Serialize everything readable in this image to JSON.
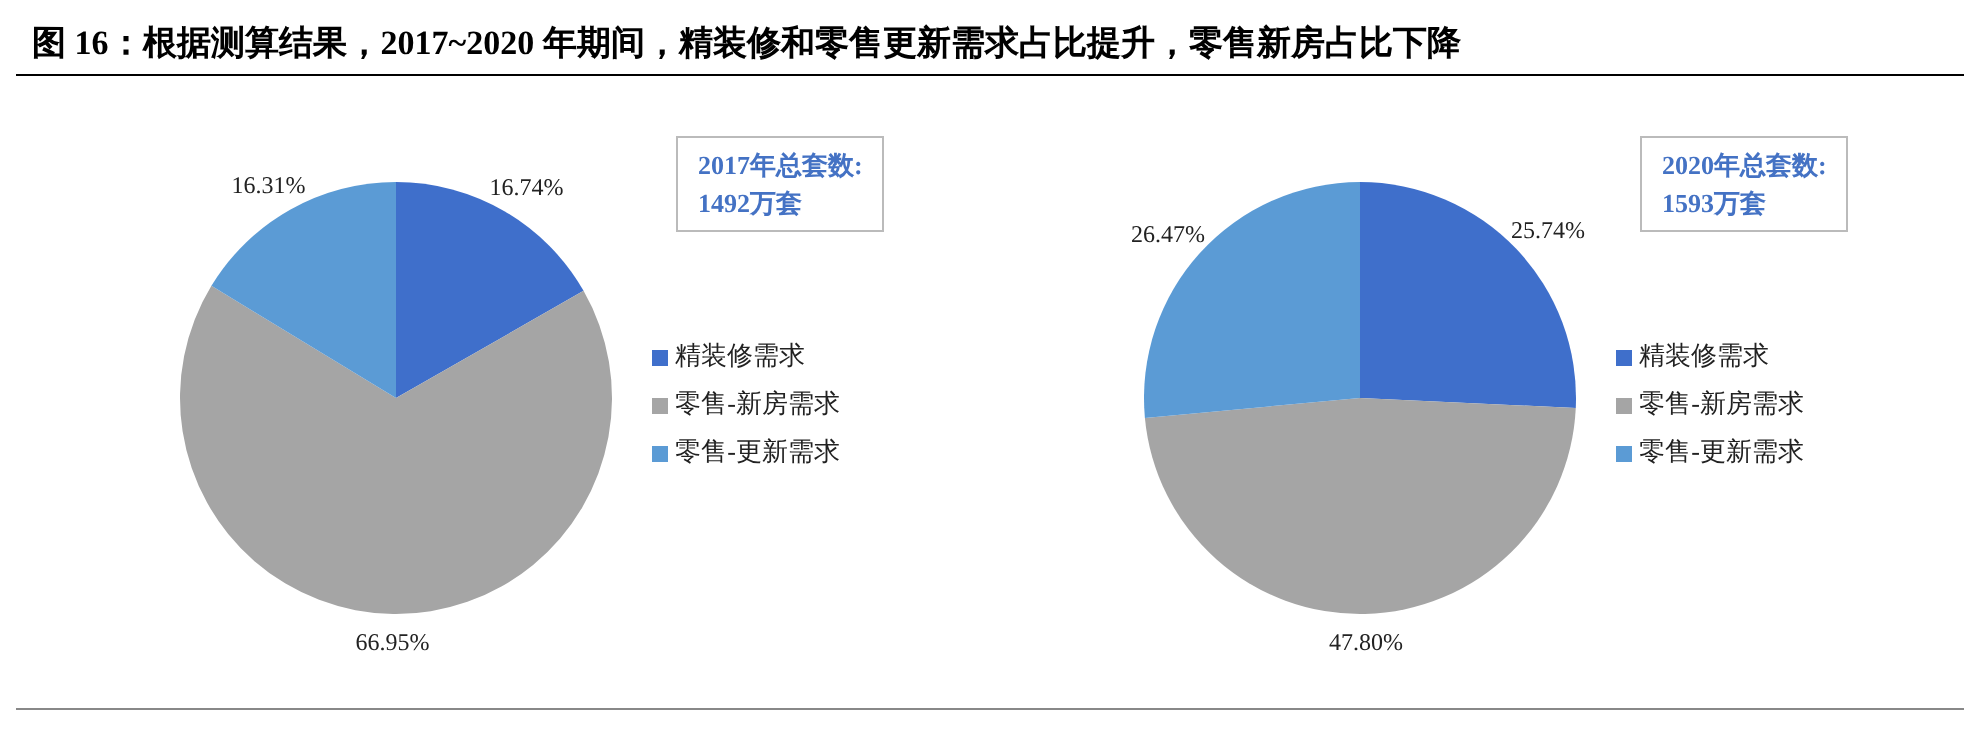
{
  "chart_data": [
    {
      "type": "pie",
      "title": "图 16：根据测算结果，2017~2020 年期间，精装修和零售更新需求占比提升，零售新房占比下降",
      "categories": [
        "精装修需求",
        "零售-新房需求",
        "零售-更新需求"
      ],
      "values": [
        16.74,
        66.95,
        16.31
      ],
      "colors": [
        "#3f6fcb",
        "#a5a5a5",
        "#5b9bd5"
      ],
      "value_labels": [
        "16.74%",
        "66.95%",
        "16.31%"
      ],
      "legend": "right",
      "annotations": [
        "2017年总套数:\n1492万套"
      ]
    },
    {
      "type": "pie",
      "categories": [
        "精装修需求",
        "零售-新房需求",
        "零售-更新需求"
      ],
      "values": [
        25.74,
        47.8,
        26.47
      ],
      "colors": [
        "#3f6fcb",
        "#a5a5a5",
        "#5b9bd5"
      ],
      "value_labels": [
        "25.74%",
        "47.80%",
        "26.47%"
      ],
      "legend": "right",
      "annotations": [
        "2020年总套数:\n1593万套"
      ]
    }
  ]
}
